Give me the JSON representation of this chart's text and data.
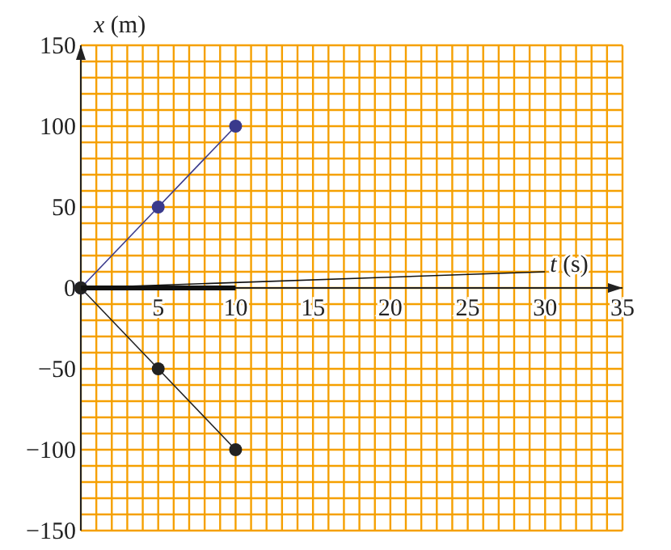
{
  "chart_data": {
    "type": "line",
    "xlabel": "t (s)",
    "ylabel": "x (m)",
    "xlim": [
      0,
      35
    ],
    "ylim": [
      -150,
      150
    ],
    "xticks": [
      {
        "value": 0,
        "label": null
      },
      {
        "value": 1,
        "label": null
      },
      {
        "value": 2,
        "label": null
      },
      {
        "value": 3,
        "label": null
      },
      {
        "value": 4,
        "label": null
      },
      5,
      {
        "value": 6,
        "label": null
      },
      {
        "value": 7,
        "label": null
      },
      {
        "value": 8,
        "label": null
      },
      {
        "value": 9,
        "label": null
      },
      10,
      {
        "value": 11,
        "label": null
      },
      {
        "value": 12,
        "label": null
      },
      {
        "value": 13,
        "label": null
      },
      {
        "value": 14,
        "label": null
      },
      15,
      {
        "value": 16,
        "label": null
      },
      {
        "value": 17,
        "label": null
      },
      {
        "value": 18,
        "label": null
      },
      {
        "value": 19,
        "label": null
      },
      20,
      {
        "value": 21,
        "label": null
      },
      {
        "value": 22,
        "label": null
      },
      {
        "value": 23,
        "label": null
      },
      {
        "value": 24,
        "label": null
      },
      25,
      {
        "value": 26,
        "label": null
      },
      {
        "value": 27,
        "label": null
      },
      {
        "value": 28,
        "label": null
      },
      {
        "value": 29,
        "label": null
      },
      30,
      {
        "value": 31,
        "label": null
      },
      {
        "value": 32,
        "label": null
      },
      {
        "value": 33,
        "label": null
      },
      {
        "value": 34,
        "label": null
      },
      35
    ],
    "yticks": [
      -150,
      {
        "value": -140,
        "label": null
      },
      {
        "value": -130,
        "label": null
      },
      {
        "value": -120,
        "label": null
      },
      {
        "value": -110,
        "label": null
      },
      -100,
      {
        "value": -90,
        "label": null
      },
      {
        "value": -80,
        "label": null
      },
      {
        "value": -70,
        "label": null
      },
      {
        "value": -60,
        "label": null
      },
      -50,
      {
        "value": -40,
        "label": null
      },
      {
        "value": -30,
        "label": null
      },
      {
        "value": -20,
        "label": null
      },
      {
        "value": -10,
        "label": null
      },
      0,
      {
        "value": 10,
        "label": null
      },
      {
        "value": 20,
        "label": null
      },
      {
        "value": 30,
        "label": null
      },
      {
        "value": 40,
        "label": null
      },
      50,
      {
        "value": 60,
        "label": null
      },
      {
        "value": 70,
        "label": null
      },
      {
        "value": 80,
        "label": null
      },
      {
        "value": 90,
        "label": null
      },
      100,
      {
        "value": 110,
        "label": null
      },
      {
        "value": 120,
        "label": null
      },
      {
        "value": 130,
        "label": null
      },
      {
        "value": 140,
        "label": null
      },
      150
    ],
    "grid": true,
    "series": [
      {
        "color": "#3a3a8c",
        "x": [
          0,
          5,
          10
        ],
        "values": [
          0,
          50,
          100
        ],
        "marker": "circle"
      },
      {
        "color": "#222222",
        "x": [
          0,
          5,
          10
        ],
        "values": [
          0,
          -50,
          -100
        ],
        "marker": "circle"
      },
      {
        "color": "#111111",
        "x": [
          0,
          30
        ],
        "values": [
          0,
          10
        ],
        "marker": "none"
      },
      {
        "color": "#111111",
        "x": [
          0,
          10
        ],
        "values": [
          0,
          0
        ],
        "marker": "none"
      }
    ]
  }
}
